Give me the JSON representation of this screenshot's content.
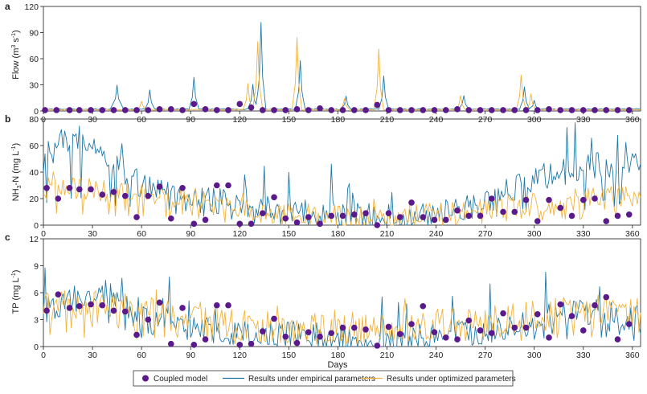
{
  "figure": {
    "x_title": "Days",
    "legend": {
      "coupled": "Coupled model",
      "empirical": "Results under empirical parameters",
      "optimized": "Results under optimized parameters",
      "placement": "bottom-center"
    },
    "colors": {
      "coupled": "#5b1a8c",
      "empirical": "#1f78a8",
      "optimized": "#f2b33d"
    }
  },
  "chart_data": [
    {
      "type": "line",
      "panel": "a",
      "title": "",
      "xlabel": "Days",
      "ylabel_main": "Flow (m",
      "ylabel_sup1": "3",
      "ylabel_mid": " s",
      "ylabel_sup2": "-1",
      "ylabel_end": ")",
      "xlim": [
        0,
        365
      ],
      "ylim": [
        0,
        120
      ],
      "y_ticks": [
        0,
        30,
        60,
        90,
        120
      ],
      "x_ticks": [
        0,
        30,
        60,
        90,
        120,
        150,
        180,
        210,
        240,
        270,
        300,
        330,
        360
      ],
      "series": [
        {
          "name": "Results under empirical parameters",
          "key": "empirical",
          "base": 1.5,
          "noise_amp": 1.2,
          "seed": 11,
          "spikes": [
            [
              45,
              28,
              3
            ],
            [
              65,
              22,
              2
            ],
            [
              92,
              37,
              2
            ],
            [
              128,
              28,
              2
            ],
            [
              133,
              100,
              2
            ],
            [
              157,
              56,
              2
            ],
            [
              185,
              15,
              2
            ],
            [
              208,
              38,
              2
            ],
            [
              257,
              16,
              2
            ],
            [
              294,
              25,
              2
            ],
            [
              300,
              10,
              2
            ]
          ]
        },
        {
          "name": "Results under optimized parameters",
          "key": "optimized",
          "base": 1,
          "noise_amp": 1.0,
          "seed": 23,
          "spikes": [
            [
              60,
              10,
              2
            ],
            [
              125,
              30,
              2
            ],
            [
              131,
              78,
              2
            ],
            [
              155,
              83,
              2
            ],
            [
              184,
              12,
              2
            ],
            [
              205,
              70,
              2
            ],
            [
              255,
              16,
              2
            ],
            [
              292,
              40,
              2
            ],
            [
              298,
              18,
              2
            ]
          ]
        },
        {
          "name": "Coupled model",
          "key": "coupled",
          "style": "markers",
          "x": [
            1,
            8,
            16,
            22,
            29,
            36,
            43,
            50,
            57,
            64,
            71,
            78,
            85,
            92,
            99,
            106,
            113,
            120,
            127,
            134,
            141,
            148,
            155,
            162,
            169,
            176,
            183,
            190,
            197,
            204,
            211,
            218,
            225,
            232,
            239,
            246,
            253,
            260,
            267,
            274,
            281,
            288,
            295,
            302,
            309,
            316,
            323,
            330,
            337,
            344,
            351,
            358
          ],
          "y": [
            1,
            1,
            1,
            1,
            1,
            1,
            1,
            1,
            1,
            1,
            2,
            2,
            1,
            8,
            2,
            1,
            1,
            8,
            4,
            1,
            1,
            1,
            2,
            1,
            3,
            1,
            1,
            1,
            1,
            7,
            1,
            1,
            1,
            1,
            1,
            1,
            2,
            1,
            1,
            1,
            1,
            1,
            1,
            1,
            2,
            1,
            1,
            1,
            1,
            1,
            1,
            1
          ]
        }
      ]
    },
    {
      "type": "line",
      "panel": "b",
      "title": "",
      "xlabel": "Days",
      "ylabel_main": "NH",
      "ylabel_sub": "3",
      "ylabel_mid": "-N (mg L",
      "ylabel_sup": "-1",
      "ylabel_end": ")",
      "xlim": [
        0,
        365
      ],
      "ylim": [
        0,
        80
      ],
      "y_ticks": [
        0,
        20,
        40,
        60,
        80
      ],
      "x_ticks": [
        0,
        30,
        60,
        90,
        120,
        150,
        180,
        210,
        240,
        270,
        300,
        330,
        360
      ],
      "series": [
        {
          "name": "Results under empirical parameters",
          "key": "empirical",
          "trend": [
            [
              0,
              45
            ],
            [
              10,
              62
            ],
            [
              20,
              66
            ],
            [
              30,
              65
            ],
            [
              40,
              50
            ],
            [
              60,
              30
            ],
            [
              90,
              22
            ],
            [
              120,
              15
            ],
            [
              150,
              10
            ],
            [
              180,
              8
            ],
            [
              210,
              6
            ],
            [
              240,
              10
            ],
            [
              270,
              15
            ],
            [
              290,
              30
            ],
            [
              310,
              38
            ],
            [
              340,
              45
            ],
            [
              365,
              48
            ]
          ],
          "noise_amp": 10,
          "seed": 5,
          "spike_prob": 0.08,
          "spike_amp": 35
        },
        {
          "name": "Results under optimized parameters",
          "key": "optimized",
          "trend": [
            [
              0,
              28
            ],
            [
              30,
              26
            ],
            [
              60,
              22
            ],
            [
              90,
              20
            ],
            [
              120,
              12
            ],
            [
              150,
              8
            ],
            [
              180,
              6
            ],
            [
              210,
              4
            ],
            [
              240,
              8
            ],
            [
              270,
              12
            ],
            [
              300,
              16
            ],
            [
              330,
              20
            ],
            [
              365,
              22
            ]
          ],
          "noise_amp": 9,
          "seed": 41,
          "spike_prob": 0.05,
          "spike_amp": 12
        },
        {
          "name": "Coupled model",
          "key": "coupled",
          "style": "markers",
          "x": [
            2,
            9,
            16,
            22,
            29,
            36,
            43,
            50,
            57,
            64,
            71,
            78,
            85,
            92,
            99,
            106,
            113,
            120,
            127,
            134,
            141,
            148,
            155,
            162,
            169,
            176,
            183,
            190,
            197,
            204,
            211,
            218,
            225,
            232,
            239,
            246,
            253,
            260,
            267,
            274,
            281,
            288,
            295,
            302,
            309,
            316,
            323,
            330,
            337,
            344,
            351,
            358
          ],
          "y": [
            28,
            20,
            28,
            27,
            27,
            23,
            25,
            22,
            6,
            22,
            29,
            5,
            28,
            1,
            4,
            30,
            30,
            1,
            1,
            9,
            21,
            5,
            2,
            6,
            1,
            7,
            7,
            8,
            9,
            0,
            9,
            6,
            17,
            6,
            4,
            4,
            11,
            7,
            7,
            20,
            10,
            10,
            19,
            3,
            19,
            13,
            7,
            19,
            20,
            3,
            7,
            8
          ]
        }
      ]
    },
    {
      "type": "line",
      "panel": "c",
      "title": "",
      "xlabel": "Days",
      "ylabel_main": "TP (mg L",
      "ylabel_sup": "-1",
      "ylabel_end": ")",
      "xlim": [
        0,
        365
      ],
      "ylim": [
        0,
        12
      ],
      "y_ticks": [
        0,
        3,
        6,
        9,
        12
      ],
      "x_ticks": [
        0,
        30,
        60,
        90,
        120,
        150,
        180,
        210,
        240,
        270,
        300,
        330,
        360
      ],
      "series": [
        {
          "name": "Results under empirical parameters",
          "key": "empirical",
          "trend": [
            [
              0,
              4
            ],
            [
              20,
              5
            ],
            [
              40,
              6
            ],
            [
              60,
              3
            ],
            [
              90,
              2
            ],
            [
              120,
              1.5
            ],
            [
              150,
              1.5
            ],
            [
              180,
              1
            ],
            [
              210,
              0.8
            ],
            [
              240,
              1.2
            ],
            [
              270,
              1.8
            ],
            [
              300,
              3
            ],
            [
              330,
              4
            ],
            [
              365,
              3
            ]
          ],
          "noise_amp": 1.5,
          "seed": 7,
          "spike_prob": 0.06,
          "spike_amp": 4
        },
        {
          "name": "Results under optimized parameters",
          "key": "optimized",
          "trend": [
            [
              0,
              4.5
            ],
            [
              30,
              4.5
            ],
            [
              60,
              4
            ],
            [
              90,
              3
            ],
            [
              120,
              2.5
            ],
            [
              150,
              2
            ],
            [
              180,
              2
            ],
            [
              210,
              2
            ],
            [
              240,
              2.5
            ],
            [
              270,
              3
            ],
            [
              300,
              3.5
            ],
            [
              330,
              4
            ],
            [
              365,
              4
            ]
          ],
          "noise_amp": 1.8,
          "seed": 57,
          "spike_prob": 0.03,
          "spike_amp": 2
        },
        {
          "name": "Coupled model",
          "key": "coupled",
          "style": "markers",
          "x": [
            2,
            9,
            16,
            22,
            29,
            36,
            43,
            50,
            57,
            64,
            71,
            78,
            85,
            92,
            99,
            106,
            113,
            120,
            127,
            134,
            141,
            148,
            155,
            162,
            169,
            176,
            183,
            190,
            197,
            204,
            211,
            218,
            225,
            232,
            239,
            246,
            253,
            260,
            267,
            274,
            281,
            288,
            295,
            302,
            309,
            316,
            323,
            330,
            337,
            344,
            351,
            358
          ],
          "y": [
            4,
            5.8,
            4.3,
            4.5,
            4.7,
            4.6,
            4,
            3.9,
            1.3,
            3,
            4.9,
            0.3,
            4.3,
            0.2,
            0.8,
            4.6,
            4.6,
            0.2,
            0.3,
            1.7,
            3.1,
            1.1,
            0.4,
            1.6,
            1.1,
            1.5,
            2.1,
            2.1,
            1.9,
            0.1,
            2.2,
            1.4,
            2.5,
            4.5,
            1.6,
            1,
            0.8,
            2.9,
            1.8,
            1.5,
            3.7,
            2.1,
            2.1,
            3.6,
            1,
            4.7,
            3.4,
            1.8,
            4.6,
            5.5,
            0.8,
            2.5
          ]
        }
      ]
    }
  ]
}
